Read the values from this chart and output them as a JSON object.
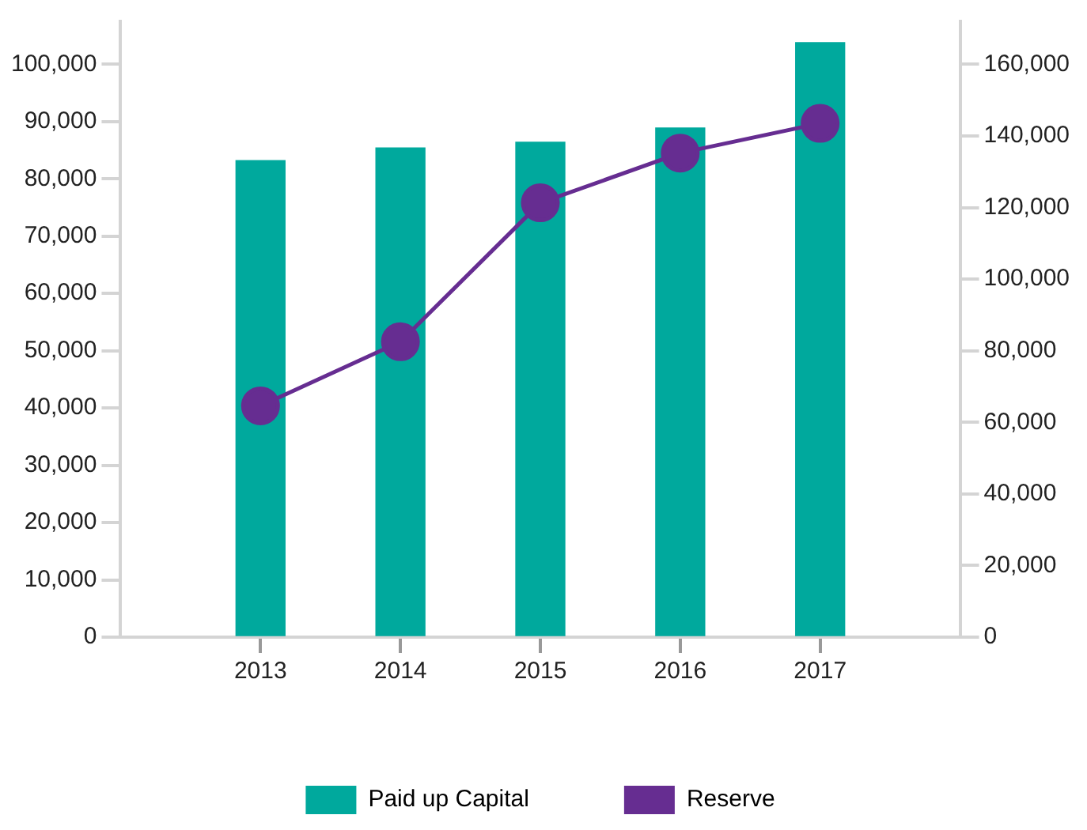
{
  "chart_data": {
    "type": "bar",
    "x": [
      2013,
      2014,
      2015,
      2016,
      2017
    ],
    "xlim": [
      2012,
      2018
    ],
    "xticks": [
      2013,
      2014,
      2015,
      2016,
      2017
    ],
    "series": [
      {
        "name": "Paid up Capital",
        "color": "#00a99d",
        "values": [
          83200,
          85400,
          86400,
          88900,
          103800
        ]
      },
      {
        "name": "Reserve",
        "type": "line",
        "axis": "y2",
        "color": "#662d91",
        "values": [
          64600,
          82500,
          121300,
          135200,
          143500
        ]
      }
    ],
    "ylim": [
      0,
      107500
    ],
    "yticks": [
      0,
      {
        "value": 10000,
        "label": "10,000"
      },
      {
        "value": 20000,
        "label": "20,000"
      },
      {
        "value": 30000,
        "label": "30,000"
      },
      {
        "value": 40000,
        "label": "40,000"
      },
      {
        "value": 50000,
        "label": "50,000"
      },
      {
        "value": 60000,
        "label": "60,000"
      },
      {
        "value": 70000,
        "label": "70,000"
      },
      {
        "value": 80000,
        "label": "80,000"
      },
      {
        "value": 90000,
        "label": "90,000"
      },
      {
        "value": 100000,
        "label": "100,000"
      }
    ],
    "y2lim": [
      0,
      172000
    ],
    "y2ticks": [
      0,
      {
        "value": 20000,
        "label": "20,000"
      },
      {
        "value": 40000,
        "label": "40,000"
      },
      {
        "value": 60000,
        "label": "60,000"
      },
      {
        "value": 80000,
        "label": "80,000"
      },
      {
        "value": 100000,
        "label": "100,000"
      },
      {
        "value": 120000,
        "label": "120,000"
      },
      {
        "value": 140000,
        "label": "140,000"
      },
      {
        "value": 160000,
        "label": "160,000"
      }
    ],
    "grid": false,
    "legend": "bottom",
    "marker": "circle",
    "line_style": "solid"
  }
}
